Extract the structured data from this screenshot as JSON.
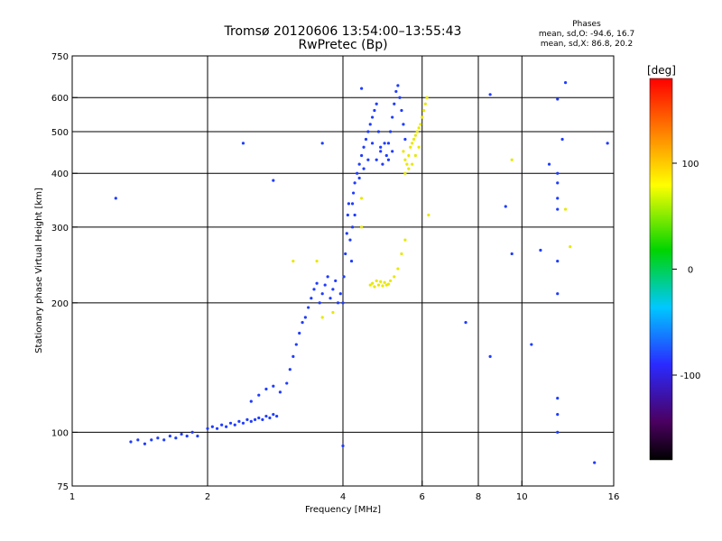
{
  "title": {
    "line1": "Tromsø 20120606 13:54:00–13:55:43",
    "line2": "RwPretec (Bp)"
  },
  "phases_legend": {
    "heading": "Phases",
    "o_line": "mean, sd,O: -94.6, 16.7",
    "x_line": "mean, sd,X: 86.8, 20.2"
  },
  "colorbar": {
    "unit_label": "[deg]",
    "tick_labels": [
      "100",
      "0",
      "-100"
    ],
    "tick_values": [
      100,
      0,
      -100
    ],
    "range": [
      -180,
      180
    ]
  },
  "chart_data": {
    "type": "scatter",
    "xlabel": "Frequency [MHz]",
    "ylabel": "Stationary phase Virtual Height [km]",
    "x_scale": "log",
    "y_scale": "log",
    "xlim": [
      1,
      16
    ],
    "ylim": [
      75,
      750
    ],
    "x_ticks": [
      1,
      2,
      4,
      6,
      8,
      10,
      16
    ],
    "y_ticks": [
      75,
      100,
      200,
      300,
      400,
      500,
      600,
      750
    ],
    "grid": true,
    "color_meaning": "phase in degrees",
    "series": [
      {
        "name": "O",
        "phase": -100,
        "points": [
          [
            1.35,
            95
          ],
          [
            1.4,
            96
          ],
          [
            1.45,
            94
          ],
          [
            1.5,
            96
          ],
          [
            1.55,
            97
          ],
          [
            1.6,
            96
          ],
          [
            1.65,
            98
          ],
          [
            1.7,
            97
          ],
          [
            1.75,
            99
          ],
          [
            1.8,
            98
          ],
          [
            1.85,
            100
          ],
          [
            1.9,
            98
          ],
          [
            2.0,
            102
          ],
          [
            2.05,
            103
          ],
          [
            2.1,
            102
          ],
          [
            2.15,
            104
          ],
          [
            2.2,
            103
          ],
          [
            2.25,
            105
          ],
          [
            2.3,
            104
          ],
          [
            2.35,
            106
          ],
          [
            2.4,
            105
          ],
          [
            2.45,
            107
          ],
          [
            2.5,
            106
          ],
          [
            2.55,
            107
          ],
          [
            2.6,
            108
          ],
          [
            2.65,
            107
          ],
          [
            2.7,
            109
          ],
          [
            2.75,
            108
          ],
          [
            2.8,
            110
          ],
          [
            2.85,
            109
          ],
          [
            2.5,
            118
          ],
          [
            2.6,
            122
          ],
          [
            2.7,
            126
          ],
          [
            2.8,
            128
          ],
          [
            2.9,
            124
          ],
          [
            3.0,
            130
          ],
          [
            3.05,
            140
          ],
          [
            3.1,
            150
          ],
          [
            3.15,
            160
          ],
          [
            3.2,
            170
          ],
          [
            3.25,
            180
          ],
          [
            3.3,
            185
          ],
          [
            3.35,
            195
          ],
          [
            3.4,
            205
          ],
          [
            3.45,
            215
          ],
          [
            3.5,
            222
          ],
          [
            3.55,
            200
          ],
          [
            3.6,
            210
          ],
          [
            3.65,
            220
          ],
          [
            3.7,
            230
          ],
          [
            3.75,
            205
          ],
          [
            3.8,
            215
          ],
          [
            3.85,
            225
          ],
          [
            3.9,
            200
          ],
          [
            3.95,
            210
          ],
          [
            4.0,
            200
          ],
          [
            4.02,
            230
          ],
          [
            4.05,
            260
          ],
          [
            4.08,
            290
          ],
          [
            4.1,
            320
          ],
          [
            4.12,
            340
          ],
          [
            4.15,
            280
          ],
          [
            4.18,
            250
          ],
          [
            4.2,
            300
          ],
          [
            4.22,
            360
          ],
          [
            4.25,
            380
          ],
          [
            4.3,
            400
          ],
          [
            4.35,
            420
          ],
          [
            4.4,
            440
          ],
          [
            4.45,
            460
          ],
          [
            4.5,
            480
          ],
          [
            4.55,
            500
          ],
          [
            4.6,
            520
          ],
          [
            4.65,
            540
          ],
          [
            4.7,
            560
          ],
          [
            4.75,
            580
          ],
          [
            4.8,
            500
          ],
          [
            4.85,
            460
          ],
          [
            4.9,
            420
          ],
          [
            5.0,
            440
          ],
          [
            5.05,
            470
          ],
          [
            5.1,
            500
          ],
          [
            5.15,
            540
          ],
          [
            5.2,
            580
          ],
          [
            5.25,
            620
          ],
          [
            5.3,
            640
          ],
          [
            5.35,
            600
          ],
          [
            5.4,
            560
          ],
          [
            5.45,
            520
          ],
          [
            5.5,
            480
          ],
          [
            4.2,
            340
          ],
          [
            4.25,
            320
          ],
          [
            4.35,
            390
          ],
          [
            4.45,
            410
          ],
          [
            4.55,
            430
          ],
          [
            4.65,
            470
          ],
          [
            4.75,
            430
          ],
          [
            4.85,
            450
          ],
          [
            4.95,
            470
          ],
          [
            5.05,
            430
          ],
          [
            5.15,
            450
          ],
          [
            7.5,
            180
          ],
          [
            8.5,
            610
          ],
          [
            8.5,
            150
          ],
          [
            9.2,
            335
          ],
          [
            9.5,
            260
          ],
          [
            10.5,
            160
          ],
          [
            11.5,
            420
          ],
          [
            12.5,
            650
          ],
          [
            12.0,
            595
          ],
          [
            12.3,
            480
          ],
          [
            12.0,
            400
          ],
          [
            12.0,
            380
          ],
          [
            12.0,
            350
          ],
          [
            12.0,
            330
          ],
          [
            12.0,
            250
          ],
          [
            12.0,
            210
          ],
          [
            12.0,
            120
          ],
          [
            12.0,
            110
          ],
          [
            12.0,
            100
          ],
          [
            14.5,
            85
          ],
          [
            15.5,
            470
          ],
          [
            11.0,
            265
          ],
          [
            4.4,
            630
          ],
          [
            3.6,
            470
          ],
          [
            2.8,
            385
          ],
          [
            2.4,
            470
          ],
          [
            1.25,
            350
          ],
          [
            4.0,
            93
          ]
        ]
      },
      {
        "name": "X",
        "phase": 100,
        "points": [
          [
            5.5,
            400
          ],
          [
            5.55,
            420
          ],
          [
            5.6,
            440
          ],
          [
            5.65,
            460
          ],
          [
            5.7,
            470
          ],
          [
            5.75,
            480
          ],
          [
            5.8,
            490
          ],
          [
            5.85,
            500
          ],
          [
            5.9,
            510
          ],
          [
            5.95,
            520
          ],
          [
            6.0,
            540
          ],
          [
            6.05,
            560
          ],
          [
            6.1,
            580
          ],
          [
            6.15,
            600
          ],
          [
            5.45,
            450
          ],
          [
            5.5,
            430
          ],
          [
            5.6,
            410
          ],
          [
            5.7,
            420
          ],
          [
            5.8,
            440
          ],
          [
            5.9,
            460
          ],
          [
            4.6,
            220
          ],
          [
            4.65,
            222
          ],
          [
            4.7,
            218
          ],
          [
            4.75,
            225
          ],
          [
            4.8,
            220
          ],
          [
            4.85,
            224
          ],
          [
            4.9,
            219
          ],
          [
            4.95,
            223
          ],
          [
            5.0,
            220
          ],
          [
            5.05,
            221
          ],
          [
            5.1,
            225
          ],
          [
            5.2,
            230
          ],
          [
            5.3,
            240
          ],
          [
            5.4,
            260
          ],
          [
            3.5,
            250
          ],
          [
            3.8,
            190
          ],
          [
            4.4,
            300
          ],
          [
            4.4,
            350
          ],
          [
            5.5,
            280
          ],
          [
            9.5,
            430
          ],
          [
            12.5,
            330
          ],
          [
            12.8,
            270
          ],
          [
            6.2,
            320
          ],
          [
            3.1,
            250
          ],
          [
            3.6,
            185
          ]
        ]
      }
    ]
  }
}
